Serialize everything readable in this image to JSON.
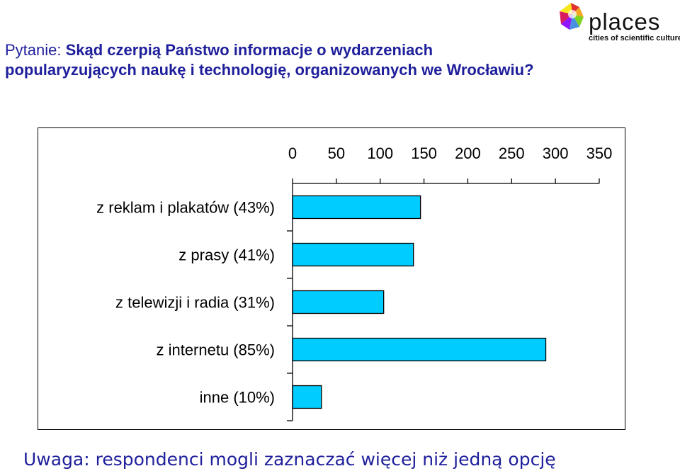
{
  "header": {
    "question_prefix": "Pytanie: ",
    "question_bold": "Skąd czerpią Państwo informacje o wydarzeniach popularyzujących naukę i technologię, organizowanych we Wrocławiu?"
  },
  "logo": {
    "name": "places",
    "tagline": "cities of scientific culture",
    "colors": [
      "#e03030",
      "#f5a623",
      "#f8e71c",
      "#7ed321",
      "#4a90e2",
      "#9013fe",
      "#d81b60"
    ]
  },
  "chart_data": {
    "type": "bar",
    "orientation": "horizontal",
    "x_axis_position": "top",
    "xlim": [
      0,
      350
    ],
    "xticks": [
      "0",
      "50",
      "100",
      "150",
      "200",
      "250",
      "300",
      "350"
    ],
    "categories": [
      "z reklam i plakatów (43%)",
      "z prasy (41%)",
      "z telewizji i radia (31%)",
      "z internetu (85%)",
      "inne (10%)"
    ],
    "values": [
      146,
      138,
      104,
      289,
      33
    ],
    "bar_color": "#00ccff",
    "bar_edge_color": "#000000",
    "grid": false
  },
  "footer": {
    "note": "Uwaga: respondenci mogli zaznaczać więcej niż jedną opcję"
  }
}
